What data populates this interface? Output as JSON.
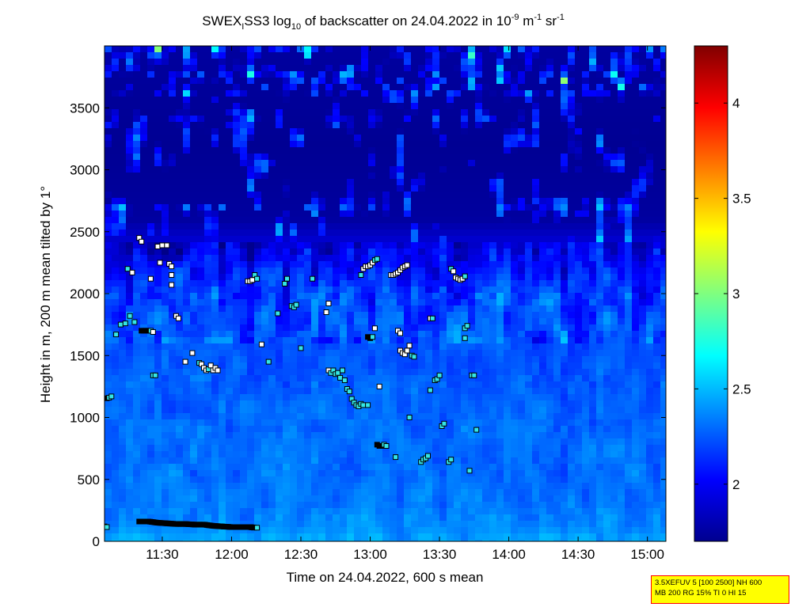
{
  "chart_data": {
    "type": "heatmap",
    "title": {
      "prefix": "SWEX",
      "sub_i": "I",
      "mid": "SS3 log",
      "sub_10": "10",
      "rest": " of backscatter on 24.04.2022 in 10",
      "sup_neg9": "-9",
      "unit_m": " m",
      "sup_neg1a": "-1",
      "unit_sr": " sr",
      "sup_neg1b": "-1"
    },
    "xlabel": "Time on 24.04.2022, 600 s mean",
    "ylabel": "Height in m, 200 m mean tilted by 1°",
    "x_range_minutes": [
      665,
      908
    ],
    "y_range": [
      0,
      4000
    ],
    "x_ticks": [
      {
        "minutes": 690,
        "label": "11:30"
      },
      {
        "minutes": 720,
        "label": "12:00"
      },
      {
        "minutes": 750,
        "label": "12:30"
      },
      {
        "minutes": 780,
        "label": "13:00"
      },
      {
        "minutes": 810,
        "label": "13:30"
      },
      {
        "minutes": 840,
        "label": "14:00"
      },
      {
        "minutes": 870,
        "label": "14:30"
      },
      {
        "minutes": 900,
        "label": "15:00"
      }
    ],
    "y_ticks": [
      {
        "value": 0,
        "label": "0"
      },
      {
        "value": 500,
        "label": "500"
      },
      {
        "value": 1000,
        "label": "1000"
      },
      {
        "value": 1500,
        "label": "1500"
      },
      {
        "value": 2000,
        "label": "2000"
      },
      {
        "value": 2500,
        "label": "2500"
      },
      {
        "value": 3000,
        "label": "3000"
      },
      {
        "value": 3500,
        "label": "3500"
      }
    ],
    "colorbar": {
      "range": [
        1.7,
        4.3
      ],
      "ticks": [
        {
          "value": 2,
          "label": "2"
        },
        {
          "value": 2.5,
          "label": "2.5"
        },
        {
          "value": 3,
          "label": "3"
        },
        {
          "value": 3.5,
          "label": "3.5"
        },
        {
          "value": 4,
          "label": "4"
        }
      ],
      "colormap": "jet"
    },
    "profile_levels": [
      {
        "height": 0,
        "value": 2.45
      },
      {
        "height": 100,
        "value": 2.38
      },
      {
        "height": 300,
        "value": 2.32
      },
      {
        "height": 800,
        "value": 2.3
      },
      {
        "height": 1400,
        "value": 2.25
      },
      {
        "height": 2000,
        "value": 2.18
      },
      {
        "height": 2300,
        "value": 2.0
      },
      {
        "height": 2600,
        "value": 1.78
      },
      {
        "height": 3200,
        "value": 1.75
      },
      {
        "height": 4000,
        "value": 1.78
      }
    ],
    "markers": [
      {
        "t": 666,
        "h": 1155,
        "style": "black"
      },
      {
        "t": 667,
        "h": 1160,
        "style": "cyan"
      },
      {
        "t": 668,
        "h": 1170,
        "style": "cyan"
      },
      {
        "t": 670,
        "h": 1670,
        "style": "cyan"
      },
      {
        "t": 672,
        "h": 1750,
        "style": "cyan"
      },
      {
        "t": 674,
        "h": 1760,
        "style": "cyan"
      },
      {
        "t": 676,
        "h": 1820,
        "style": "cyan"
      },
      {
        "t": 678,
        "h": 1770,
        "style": "cyan"
      },
      {
        "t": 675,
        "h": 2200,
        "style": "cyan"
      },
      {
        "t": 677,
        "h": 2170,
        "style": "white"
      },
      {
        "t": 680,
        "h": 2450,
        "style": "white"
      },
      {
        "t": 681,
        "h": 2420,
        "style": "white"
      },
      {
        "t": 681,
        "h": 1700,
        "style": "black"
      },
      {
        "t": 682,
        "h": 1700,
        "style": "black"
      },
      {
        "t": 683,
        "h": 1700,
        "style": "black"
      },
      {
        "t": 684,
        "h": 1700,
        "style": "black"
      },
      {
        "t": 685,
        "h": 1700,
        "style": "cyan"
      },
      {
        "t": 686,
        "h": 1690,
        "style": "white"
      },
      {
        "t": 685,
        "h": 2120,
        "style": "white"
      },
      {
        "t": 686,
        "h": 1340,
        "style": "cyan"
      },
      {
        "t": 687,
        "h": 1340,
        "style": "cyan"
      },
      {
        "t": 688,
        "h": 2380,
        "style": "white"
      },
      {
        "t": 689,
        "h": 2250,
        "style": "white"
      },
      {
        "t": 690,
        "h": 2390,
        "style": "white"
      },
      {
        "t": 692,
        "h": 2390,
        "style": "white"
      },
      {
        "t": 693,
        "h": 2240,
        "style": "white"
      },
      {
        "t": 694,
        "h": 2220,
        "style": "white"
      },
      {
        "t": 694,
        "h": 2150,
        "style": "white"
      },
      {
        "t": 694,
        "h": 2070,
        "style": "white"
      },
      {
        "t": 696,
        "h": 1820,
        "style": "white"
      },
      {
        "t": 697,
        "h": 1800,
        "style": "white"
      },
      {
        "t": 700,
        "h": 1450,
        "style": "white"
      },
      {
        "t": 703,
        "h": 1520,
        "style": "white"
      },
      {
        "t": 706,
        "h": 1440,
        "style": "cyan"
      },
      {
        "t": 707,
        "h": 1430,
        "style": "white"
      },
      {
        "t": 708,
        "h": 1400,
        "style": "white"
      },
      {
        "t": 709,
        "h": 1380,
        "style": "white"
      },
      {
        "t": 710,
        "h": 1390,
        "style": "cyan"
      },
      {
        "t": 711,
        "h": 1420,
        "style": "white"
      },
      {
        "t": 712,
        "h": 1380,
        "style": "white"
      },
      {
        "t": 713,
        "h": 1400,
        "style": "white"
      },
      {
        "t": 714,
        "h": 1380,
        "style": "white"
      },
      {
        "t": 727,
        "h": 2100,
        "style": "white"
      },
      {
        "t": 728,
        "h": 2100,
        "style": "white"
      },
      {
        "t": 729,
        "h": 2110,
        "style": "white"
      },
      {
        "t": 730,
        "h": 2150,
        "style": "cyan"
      },
      {
        "t": 731,
        "h": 2120,
        "style": "cyan"
      },
      {
        "t": 733,
        "h": 1590,
        "style": "white"
      },
      {
        "t": 736,
        "h": 1450,
        "style": "cyan"
      },
      {
        "t": 740,
        "h": 1840,
        "style": "cyan"
      },
      {
        "t": 743,
        "h": 2080,
        "style": "cyan"
      },
      {
        "t": 744,
        "h": 2120,
        "style": "cyan"
      },
      {
        "t": 746,
        "h": 1900,
        "style": "cyan"
      },
      {
        "t": 747,
        "h": 1890,
        "style": "cyan"
      },
      {
        "t": 748,
        "h": 1910,
        "style": "cyan"
      },
      {
        "t": 750,
        "h": 1560,
        "style": "cyan"
      },
      {
        "t": 755,
        "h": 2120,
        "style": "cyan"
      },
      {
        "t": 761,
        "h": 1850,
        "style": "white"
      },
      {
        "t": 762,
        "h": 1920,
        "style": "white"
      },
      {
        "t": 762,
        "h": 1380,
        "style": "white"
      },
      {
        "t": 763,
        "h": 1360,
        "style": "cyan"
      },
      {
        "t": 764,
        "h": 1380,
        "style": "cyan"
      },
      {
        "t": 765,
        "h": 1350,
        "style": "cyan"
      },
      {
        "t": 766,
        "h": 1360,
        "style": "cyan"
      },
      {
        "t": 767,
        "h": 1320,
        "style": "cyan"
      },
      {
        "t": 768,
        "h": 1380,
        "style": "cyan"
      },
      {
        "t": 769,
        "h": 1300,
        "style": "cyan"
      },
      {
        "t": 770,
        "h": 1230,
        "style": "cyan"
      },
      {
        "t": 771,
        "h": 1210,
        "style": "cyan"
      },
      {
        "t": 772,
        "h": 1150,
        "style": "cyan"
      },
      {
        "t": 773,
        "h": 1120,
        "style": "cyan"
      },
      {
        "t": 774,
        "h": 1100,
        "style": "cyan"
      },
      {
        "t": 775,
        "h": 1090,
        "style": "cyan"
      },
      {
        "t": 776,
        "h": 1110,
        "style": "cyan"
      },
      {
        "t": 777,
        "h": 1100,
        "style": "cyan"
      },
      {
        "t": 779,
        "h": 1100,
        "style": "cyan"
      },
      {
        "t": 776,
        "h": 2150,
        "style": "cyan"
      },
      {
        "t": 777,
        "h": 2200,
        "style": "white"
      },
      {
        "t": 778,
        "h": 2220,
        "style": "white"
      },
      {
        "t": 779,
        "h": 2220,
        "style": "white"
      },
      {
        "t": 780,
        "h": 2230,
        "style": "white"
      },
      {
        "t": 781,
        "h": 2250,
        "style": "white"
      },
      {
        "t": 782,
        "h": 2270,
        "style": "cyan"
      },
      {
        "t": 783,
        "h": 2280,
        "style": "cyan"
      },
      {
        "t": 779,
        "h": 1650,
        "style": "black"
      },
      {
        "t": 780,
        "h": 1640,
        "style": "black"
      },
      {
        "t": 781,
        "h": 1650,
        "style": "cyan"
      },
      {
        "t": 782,
        "h": 1720,
        "style": "white"
      },
      {
        "t": 784,
        "h": 1250,
        "style": "white"
      },
      {
        "t": 783,
        "h": 780,
        "style": "black"
      },
      {
        "t": 784,
        "h": 770,
        "style": "black"
      },
      {
        "t": 785,
        "h": 770,
        "style": "black"
      },
      {
        "t": 786,
        "h": 780,
        "style": "cyan"
      },
      {
        "t": 787,
        "h": 770,
        "style": "cyan"
      },
      {
        "t": 789,
        "h": 2150,
        "style": "white"
      },
      {
        "t": 790,
        "h": 2150,
        "style": "white"
      },
      {
        "t": 791,
        "h": 2160,
        "style": "white"
      },
      {
        "t": 792,
        "h": 2170,
        "style": "white"
      },
      {
        "t": 793,
        "h": 2190,
        "style": "white"
      },
      {
        "t": 794,
        "h": 2210,
        "style": "white"
      },
      {
        "t": 795,
        "h": 2220,
        "style": "white"
      },
      {
        "t": 796,
        "h": 2230,
        "style": "white"
      },
      {
        "t": 791,
        "h": 680,
        "style": "cyan"
      },
      {
        "t": 792,
        "h": 1700,
        "style": "white"
      },
      {
        "t": 793,
        "h": 1680,
        "style": "white"
      },
      {
        "t": 793,
        "h": 1540,
        "style": "white"
      },
      {
        "t": 794,
        "h": 1520,
        "style": "white"
      },
      {
        "t": 795,
        "h": 1510,
        "style": "white"
      },
      {
        "t": 796,
        "h": 1540,
        "style": "white"
      },
      {
        "t": 797,
        "h": 1580,
        "style": "white"
      },
      {
        "t": 798,
        "h": 1500,
        "style": "cyan"
      },
      {
        "t": 799,
        "h": 1490,
        "style": "cyan"
      },
      {
        "t": 797,
        "h": 1000,
        "style": "cyan"
      },
      {
        "t": 802,
        "h": 640,
        "style": "cyan"
      },
      {
        "t": 803,
        "h": 660,
        "style": "cyan"
      },
      {
        "t": 804,
        "h": 670,
        "style": "cyan"
      },
      {
        "t": 805,
        "h": 690,
        "style": "cyan"
      },
      {
        "t": 806,
        "h": 1800,
        "style": "white"
      },
      {
        "t": 807,
        "h": 1800,
        "style": "cyan"
      },
      {
        "t": 806,
        "h": 1220,
        "style": "cyan"
      },
      {
        "t": 808,
        "h": 1300,
        "style": "cyan"
      },
      {
        "t": 809,
        "h": 1310,
        "style": "cyan"
      },
      {
        "t": 810,
        "h": 1340,
        "style": "cyan"
      },
      {
        "t": 811,
        "h": 930,
        "style": "cyan"
      },
      {
        "t": 812,
        "h": 950,
        "style": "cyan"
      },
      {
        "t": 814,
        "h": 640,
        "style": "cyan"
      },
      {
        "t": 815,
        "h": 660,
        "style": "cyan"
      },
      {
        "t": 815,
        "h": 2200,
        "style": "cyan"
      },
      {
        "t": 816,
        "h": 2180,
        "style": "white"
      },
      {
        "t": 817,
        "h": 2130,
        "style": "white"
      },
      {
        "t": 818,
        "h": 2120,
        "style": "white"
      },
      {
        "t": 819,
        "h": 2110,
        "style": "white"
      },
      {
        "t": 820,
        "h": 2120,
        "style": "white"
      },
      {
        "t": 821,
        "h": 2140,
        "style": "cyan"
      },
      {
        "t": 821,
        "h": 1720,
        "style": "cyan"
      },
      {
        "t": 822,
        "h": 1740,
        "style": "cyan"
      },
      {
        "t": 821,
        "h": 1640,
        "style": "cyan"
      },
      {
        "t": 823,
        "h": 570,
        "style": "cyan"
      },
      {
        "t": 824,
        "h": 1340,
        "style": "cyan"
      },
      {
        "t": 825,
        "h": 1340,
        "style": "cyan"
      },
      {
        "t": 826,
        "h": 900,
        "style": "cyan"
      }
    ],
    "boundary_band": [
      {
        "t": 680,
        "h": 160
      },
      {
        "t": 684,
        "h": 160
      },
      {
        "t": 688,
        "h": 150
      },
      {
        "t": 692,
        "h": 145
      },
      {
        "t": 696,
        "h": 140
      },
      {
        "t": 700,
        "h": 140
      },
      {
        "t": 704,
        "h": 135
      },
      {
        "t": 708,
        "h": 135
      },
      {
        "t": 712,
        "h": 125
      },
      {
        "t": 716,
        "h": 120
      },
      {
        "t": 720,
        "h": 115
      },
      {
        "t": 724,
        "h": 115
      },
      {
        "t": 728,
        "h": 115
      },
      {
        "t": 730,
        "h": 110
      }
    ],
    "boundary_start": [
      {
        "t": 665,
        "h": 120
      },
      {
        "t": 666,
        "h": 115
      }
    ]
  },
  "annotation_box": {
    "line1": "3.5XEFUV 5 [100 2500] NH 600",
    "line2": "MB 200 RG 15% TI 0 HI 15"
  }
}
